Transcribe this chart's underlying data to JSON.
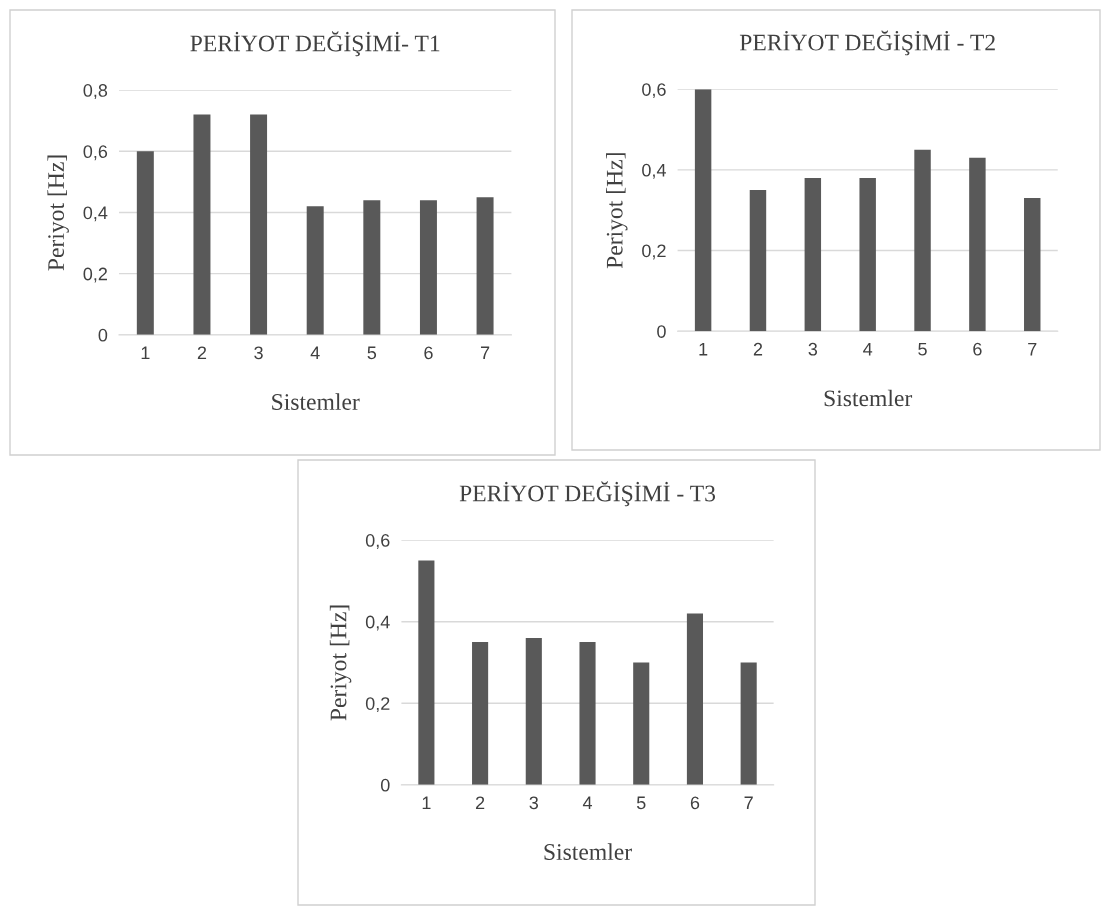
{
  "chart_data": [
    {
      "type": "bar",
      "title": "PERİYOT DEĞİŞİMİ- T1",
      "xlabel": "Sistemler",
      "ylabel": "Periyot [Hz]",
      "categories": [
        "1",
        "2",
        "3",
        "4",
        "5",
        "6",
        "7"
      ],
      "values": [
        0.6,
        0.72,
        0.72,
        0.42,
        0.44,
        0.44,
        0.45
      ],
      "color": "#595959",
      "ylim": [
        0,
        0.8
      ],
      "yticks": [
        0,
        {
          "value": 0.2,
          "label": "0,2"
        },
        {
          "value": 0.4,
          "label": "0,4"
        },
        {
          "value": 0.6,
          "label": "0,6"
        },
        {
          "value": 0.8,
          "label": "0,8"
        }
      ],
      "grid": "y"
    },
    {
      "type": "bar",
      "title": "PERİYOT DEĞİŞİMİ - T2",
      "xlabel": "Sistemler",
      "ylabel": "Periyot [Hz]",
      "categories": [
        "1",
        "2",
        "3",
        "4",
        "5",
        "6",
        "7"
      ],
      "values": [
        0.6,
        0.35,
        0.38,
        0.38,
        0.45,
        0.43,
        0.33
      ],
      "color": "#595959",
      "ylim": [
        0,
        0.6
      ],
      "yticks": [
        0,
        {
          "value": 0.2,
          "label": "0,2"
        },
        {
          "value": 0.4,
          "label": "0,4"
        },
        {
          "value": 0.6,
          "label": "0,6"
        }
      ],
      "grid": "y"
    },
    {
      "type": "bar",
      "title": "PERİYOT DEĞİŞİMİ - T3",
      "xlabel": "Sistemler",
      "ylabel": "Periyot [Hz]",
      "categories": [
        "1",
        "2",
        "3",
        "4",
        "5",
        "6",
        "7"
      ],
      "values": [
        0.55,
        0.35,
        0.36,
        0.35,
        0.3,
        0.42,
        0.3
      ],
      "color": "#595959",
      "ylim": [
        0,
        0.6
      ],
      "yticks": [
        0,
        {
          "value": 0.2,
          "label": "0,2"
        },
        {
          "value": 0.4,
          "label": "0,4"
        },
        {
          "value": 0.6,
          "label": "0,6"
        }
      ],
      "grid": "y"
    }
  ]
}
